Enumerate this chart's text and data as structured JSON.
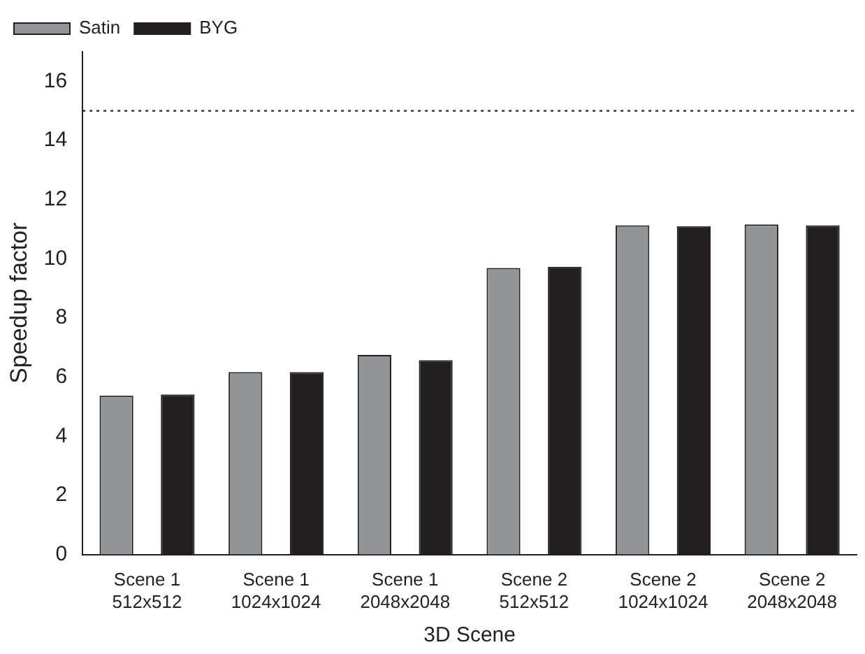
{
  "chart_data": {
    "type": "bar",
    "xlabel": "3D Scene",
    "ylabel": "Speedup factor",
    "categories": [
      "Scene 1\n512x512",
      "Scene 1\n1024x1024",
      "Scene 1\n2048x2048",
      "Scene 2\n512x512",
      "Scene 2\n1024x1024",
      "Scene 2\n2048x2048"
    ],
    "series": [
      {
        "name": "Satin",
        "color": "#939498",
        "values": [
          5.37,
          6.17,
          6.75,
          9.69,
          11.13,
          11.16
        ]
      },
      {
        "name": "BYG",
        "color": "#231f20",
        "values": [
          5.41,
          6.17,
          6.57,
          9.73,
          11.1,
          11.13
        ]
      }
    ],
    "ylim": [
      0,
      17
    ],
    "yticks": [
      0,
      2,
      4,
      6,
      8,
      10,
      12,
      14,
      16
    ],
    "ref_lines": [
      {
        "axis": "y",
        "value": 15,
        "line_style": "dotted",
        "color": "#231f20"
      }
    ],
    "legend": "top left",
    "grid": false
  }
}
